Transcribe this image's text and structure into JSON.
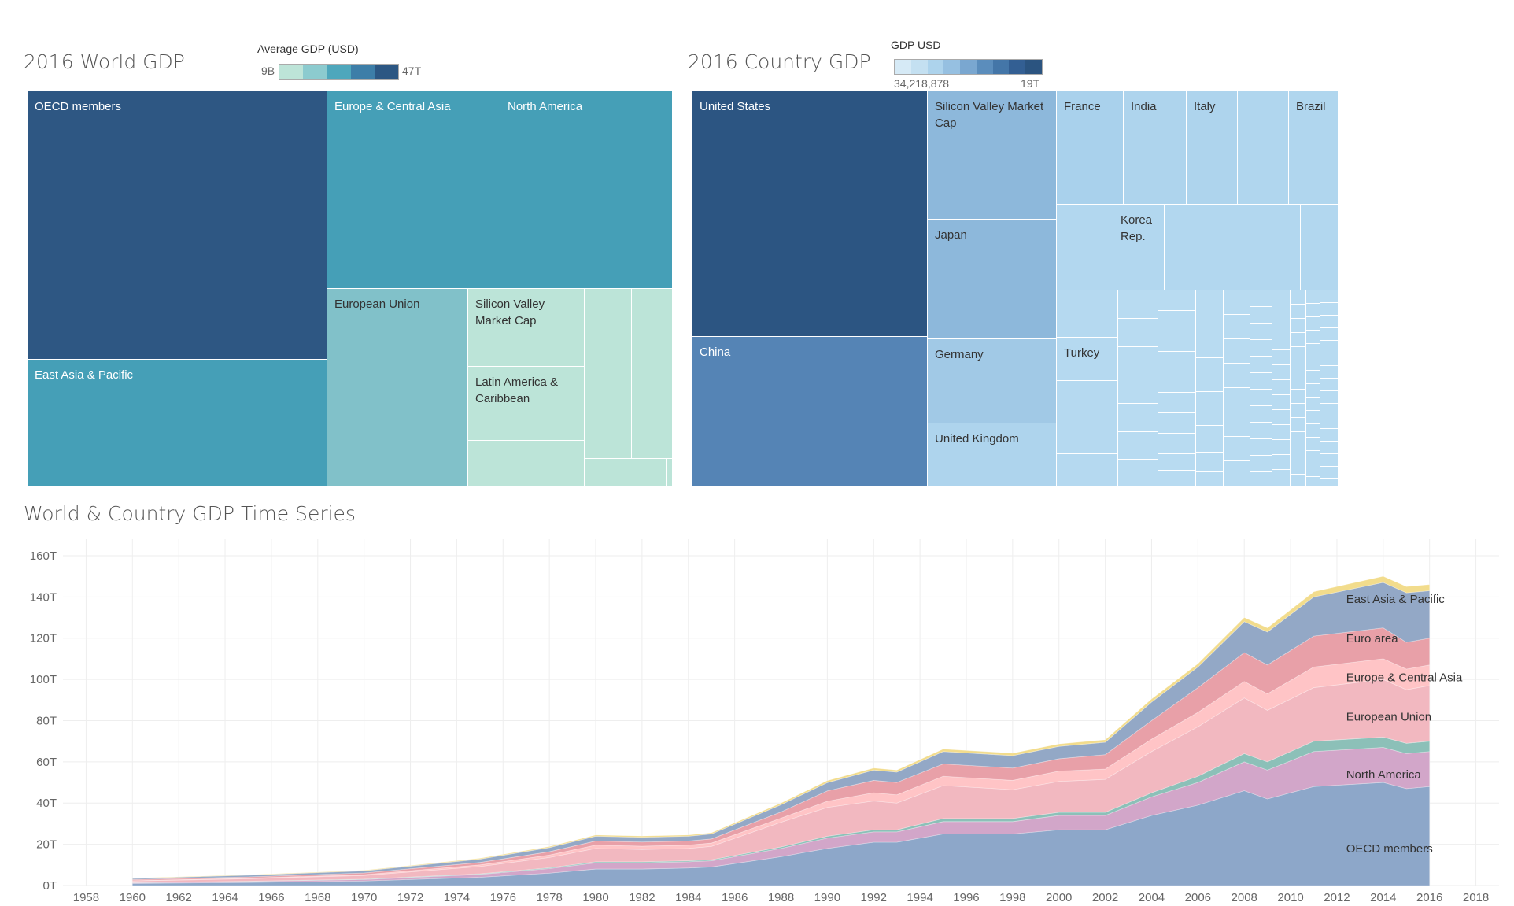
{
  "world_tm": {
    "title": "2016 World GDP",
    "legend_title": "Average GDP (USD)",
    "legend_min": "9B",
    "legend_max": "47T",
    "ramp": [
      "#bde4d8",
      "#8ccbcf",
      "#4ea7bc",
      "#3d7ea8",
      "#2c5783"
    ]
  },
  "country_tm": {
    "title": "2016 Country GDP",
    "legend_title": "GDP USD",
    "legend_min": "34,218,878",
    "legend_max": "19T",
    "ramp": [
      "#d6eaf6",
      "#c4e0f1",
      "#add3ec",
      "#96c0e1",
      "#7aa7d0",
      "#5b8dbc",
      "#4476a8",
      "#335f93",
      "#2b5480"
    ]
  },
  "ts": {
    "title": "World & Country GDP Time Series"
  },
  "chart_data": [
    {
      "type": "treemap",
      "title": "2016 World GDP",
      "color_label": "Average GDP (USD)",
      "labeled": [
        "OECD members",
        "East Asia & Pacific",
        "Europe & Central Asia",
        "North America",
        "European Union",
        "Silicon Valley Market Cap",
        "Latin America & Caribbean"
      ]
    },
    {
      "type": "treemap",
      "title": "2016 Country GDP",
      "color_label": "GDP USD",
      "labeled": [
        "United States",
        "China",
        "Silicon Valley Market Cap",
        "Japan",
        "Germany",
        "United Kingdom",
        "France",
        "India",
        "Italy",
        "Brazil",
        "Korea Rep.",
        "Turkey"
      ]
    },
    {
      "type": "area",
      "title": "World & Country GDP Time Series",
      "xlim": [
        1957,
        2019
      ],
      "ylim": [
        0,
        168
      ],
      "y_unit": "T",
      "xticks": [
        1958,
        1960,
        1962,
        1964,
        1966,
        1968,
        1970,
        1972,
        1974,
        1976,
        1978,
        1980,
        1982,
        1984,
        1986,
        1988,
        1990,
        1992,
        1994,
        1996,
        1998,
        2000,
        2002,
        2004,
        2006,
        2008,
        2010,
        2012,
        2014,
        2016,
        2018
      ],
      "yticks": [
        0,
        20,
        40,
        60,
        80,
        100,
        120,
        140,
        160
      ],
      "ytick_labels": [
        "0T",
        "20T",
        "40T",
        "60T",
        "80T",
        "100T",
        "120T",
        "140T",
        "160T"
      ],
      "x": [
        1960,
        1965,
        1970,
        1975,
        1978,
        1980,
        1982,
        1984,
        1985,
        1988,
        1990,
        1992,
        1993,
        1995,
        1998,
        2000,
        2002,
        2004,
        2006,
        2008,
        2009,
        2011,
        2014,
        2015,
        2016
      ],
      "series": [
        {
          "name": "OECD members",
          "color": "#8da7c9",
          "values": [
            1.0,
            1.5,
            2.2,
            4.0,
            6.0,
            8.0,
            8.0,
            8.5,
            9.0,
            14,
            18,
            21,
            21,
            25,
            25,
            27,
            27,
            34,
            39,
            46,
            42,
            48,
            50,
            47,
            48
          ]
        },
        {
          "name": "",
          "color": "#d2a6c9",
          "values": [
            0.3,
            0.5,
            0.7,
            1.4,
            2.2,
            3.0,
            3.0,
            3.0,
            3.0,
            4.0,
            5.0,
            5.0,
            5.0,
            6.0,
            6.0,
            7.0,
            7.0,
            9.0,
            11,
            14,
            14,
            17,
            17,
            17,
            17
          ]
        },
        {
          "name": "",
          "color": "#8cc0b8",
          "values": [
            0.1,
            0.1,
            0.2,
            0.3,
            0.4,
            0.5,
            0.5,
            0.5,
            0.5,
            0.7,
            0.9,
            1.0,
            1.0,
            1.5,
            1.5,
            1.5,
            1.5,
            2.0,
            3.0,
            4.0,
            4.0,
            5.0,
            5.0,
            5.0,
            5.0
          ]
        },
        {
          "name": "",
          "color": "#f2b8c0",
          "values": [
            0.8,
            1.2,
            1.8,
            3.5,
            5.0,
            6.5,
            6.0,
            6.0,
            6.5,
            12,
            14,
            14,
            13,
            16,
            14,
            15,
            16,
            20,
            24,
            27,
            25,
            26,
            28,
            26,
            27
          ]
        },
        {
          "name": "",
          "color": "#ffc4c6",
          "values": [
            0.2,
            0.3,
            0.4,
            0.8,
            1.2,
            1.6,
            1.6,
            1.6,
            1.6,
            2.0,
            3.0,
            4.0,
            4.0,
            4.5,
            4.5,
            5.0,
            5.0,
            6.0,
            7.0,
            8.0,
            8.0,
            10,
            10,
            10,
            10
          ]
        },
        {
          "name": "",
          "color": "#e8a0a8",
          "values": [
            0.5,
            0.6,
            0.8,
            1.2,
            1.6,
            2.0,
            2.0,
            2.0,
            2.0,
            3.0,
            5.0,
            6.0,
            6.0,
            6.0,
            6.0,
            6.0,
            7.0,
            9.0,
            12,
            14,
            14,
            15,
            15,
            13,
            13
          ]
        },
        {
          "name": "",
          "color": "#93a8c6",
          "values": [
            0.5,
            0.8,
            1.0,
            1.6,
            2.0,
            2.3,
            2.3,
            2.3,
            2.4,
            3.5,
            4.0,
            5.0,
            5.0,
            6.0,
            6.0,
            6.0,
            6.0,
            9.0,
            10,
            15,
            16,
            19,
            22,
            24,
            23
          ]
        },
        {
          "name": "",
          "color": "#f2dc8c",
          "values": [
            0.2,
            0.2,
            0.3,
            0.4,
            0.5,
            0.6,
            0.6,
            0.6,
            0.6,
            0.8,
            1.0,
            1.0,
            1.0,
            1.2,
            1.2,
            1.2,
            1.2,
            1.5,
            1.6,
            2.0,
            2.0,
            2.5,
            3.0,
            3.0,
            3.0
          ]
        }
      ],
      "annotations": [
        {
          "text": "East Asia & Pacific",
          "x": 2012.4,
          "y": 137
        },
        {
          "text": "Euro area",
          "x": 2012.4,
          "y": 118
        },
        {
          "text": "Europe & Central Asia",
          "x": 2012.4,
          "y": 99
        },
        {
          "text": "European Union",
          "x": 2012.4,
          "y": 80
        },
        {
          "text": "North America",
          "x": 2012.4,
          "y": 52
        },
        {
          "text": "OECD members",
          "x": 2012.4,
          "y": 16
        }
      ]
    }
  ]
}
